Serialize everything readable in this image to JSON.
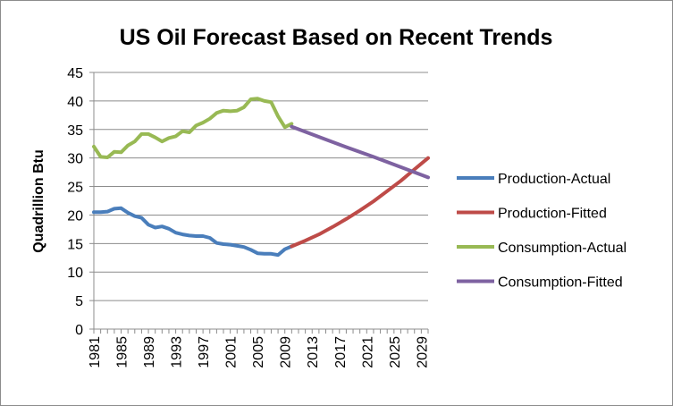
{
  "chart_data": {
    "type": "line",
    "title": "US Oil Forecast Based on Recent Trends",
    "xlabel": "",
    "ylabel": "Quadrillion Btu",
    "xlim": [
      1981,
      2030
    ],
    "ylim": [
      0,
      45
    ],
    "ytick_step": 5,
    "y_ticks": [
      "0",
      "5",
      "10",
      "15",
      "20",
      "25",
      "30",
      "35",
      "40",
      "45"
    ],
    "x_tick_labels": [
      "1981",
      "1985",
      "1989",
      "1993",
      "1997",
      "2001",
      "2005",
      "2009",
      "2013",
      "2017",
      "2021",
      "2025",
      "2029"
    ],
    "grid": "horizontal",
    "legend_position": "right",
    "series": [
      {
        "name": "Production-Actual",
        "color": "#4a7ebb",
        "x": [
          1981,
          1982,
          1983,
          1984,
          1985,
          1986,
          1987,
          1988,
          1989,
          1990,
          1991,
          1992,
          1993,
          1994,
          1995,
          1996,
          1997,
          1998,
          1999,
          2000,
          2001,
          2002,
          2003,
          2004,
          2005,
          2006,
          2007,
          2008,
          2009,
          2010
        ],
        "y": [
          20.5,
          20.5,
          20.6,
          21.1,
          21.2,
          20.4,
          19.8,
          19.5,
          18.3,
          17.8,
          18.0,
          17.6,
          16.9,
          16.6,
          16.4,
          16.3,
          16.3,
          16.0,
          15.1,
          14.9,
          14.8,
          14.6,
          14.4,
          13.9,
          13.3,
          13.2,
          13.2,
          13.0,
          14.0,
          14.5
        ]
      },
      {
        "name": "Production-Fitted",
        "color": "#be4b48",
        "x": [
          2010,
          2012,
          2014,
          2016,
          2018,
          2020,
          2022,
          2024,
          2026,
          2028,
          2030
        ],
        "y": [
          14.5,
          15.5,
          16.6,
          17.9,
          19.3,
          20.8,
          22.4,
          24.2,
          26.0,
          28.0,
          30.0
        ]
      },
      {
        "name": "Consumption-Actual",
        "color": "#98b954",
        "x": [
          1981,
          1982,
          1983,
          1984,
          1985,
          1986,
          1987,
          1988,
          1989,
          1990,
          1991,
          1992,
          1993,
          1994,
          1995,
          1996,
          1997,
          1998,
          1999,
          2000,
          2001,
          2002,
          2003,
          2004,
          2005,
          2006,
          2007,
          2008,
          2009,
          2010
        ],
        "y": [
          32.0,
          30.2,
          30.1,
          31.1,
          31.0,
          32.2,
          32.9,
          34.2,
          34.2,
          33.6,
          32.9,
          33.5,
          33.8,
          34.7,
          34.5,
          35.7,
          36.2,
          36.9,
          37.9,
          38.3,
          38.2,
          38.3,
          38.9,
          40.3,
          40.4,
          40.0,
          39.8,
          37.3,
          35.4,
          36.0
        ]
      },
      {
        "name": "Consumption-Fitted",
        "color": "#7e62a1",
        "x": [
          2010,
          2014,
          2018,
          2022,
          2026,
          2030
        ],
        "y": [
          35.5,
          33.7,
          31.9,
          30.2,
          28.4,
          26.6
        ]
      }
    ]
  }
}
